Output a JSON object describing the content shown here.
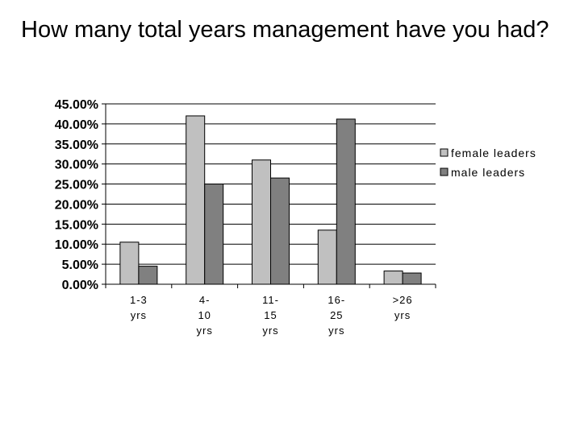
{
  "title": "How many total years management have you had?",
  "chart_data": {
    "type": "bar",
    "categories": [
      [
        "1-3",
        "yrs"
      ],
      [
        "4-",
        "10",
        "yrs"
      ],
      [
        "11-",
        "15",
        "yrs"
      ],
      [
        "16-",
        "25",
        "yrs"
      ],
      [
        ">26",
        "yrs"
      ]
    ],
    "series": [
      {
        "name": "female leaders",
        "color": "#c0c0c0",
        "values": [
          10.5,
          42.0,
          31.0,
          13.5,
          3.3
        ]
      },
      {
        "name": "male leaders",
        "color": "#808080",
        "values": [
          4.5,
          25.0,
          26.5,
          41.2,
          2.8
        ]
      }
    ],
    "ylim": [
      0,
      45
    ],
    "yticks": [
      "0.00%",
      "5.00%",
      "10.00%",
      "15.00%",
      "20.00%",
      "25.00%",
      "30.00%",
      "35.00%",
      "40.00%",
      "45.00%"
    ],
    "grid": true,
    "legend": "right",
    "title": "",
    "xlabel": "",
    "ylabel": ""
  }
}
